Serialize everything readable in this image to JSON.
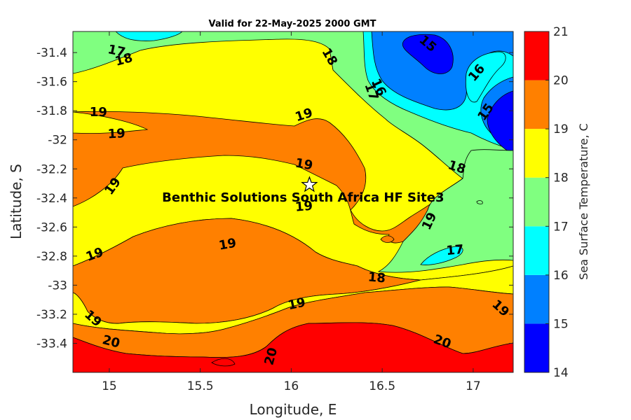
{
  "chart_data": {
    "type": "contour",
    "title": "Valid for 22-May-2025 2000 GMT",
    "xlabel": "Longitude, E",
    "ylabel": "Latitude, S",
    "xlim": [
      14.8,
      17.22
    ],
    "ylim": [
      -33.6,
      -31.255
    ],
    "xticks": [
      15,
      15.5,
      16,
      16.5,
      17
    ],
    "xtick_labels": [
      "15",
      "15.5",
      "16",
      "16.5",
      "17"
    ],
    "yticks": [
      -31.4,
      -31.6,
      -31.8,
      -32,
      -32.2,
      -32.4,
      -32.6,
      -32.8,
      -33,
      -33.2,
      -33.4
    ],
    "ytick_labels": [
      "-31.4",
      "-31.6",
      "-31.8",
      "-32",
      "-32.2",
      "-32.4",
      "-32.6",
      "-32.8",
      "-33",
      "-33.2",
      "-33.4"
    ],
    "colorbar": {
      "label": "Sea Surface Temperature, C",
      "levels": [
        14,
        15,
        16,
        17,
        18,
        19,
        20,
        21
      ],
      "tick_labels": [
        "14",
        "15",
        "16",
        "17",
        "18",
        "19",
        "20",
        "21"
      ],
      "colors": [
        "#0000ff",
        "#0080ff",
        "#00ffff",
        "#80ff80",
        "#ffff00",
        "#ff8000",
        "#ff0000"
      ]
    },
    "site": {
      "name": "Benthic Solutions South Africa HF Site3",
      "lon": 16.1,
      "lat": -32.31
    },
    "contour_labels": [
      {
        "text": "17",
        "lon": 15.04,
        "lat": -31.39,
        "rot": 12
      },
      {
        "text": "18",
        "lon": 15.08,
        "lat": -31.45,
        "rot": -15
      },
      {
        "text": "18",
        "lon": 16.21,
        "lat": -31.43,
        "rot": 60
      },
      {
        "text": "15",
        "lon": 16.75,
        "lat": -31.34,
        "rot": 40
      },
      {
        "text": "16",
        "lon": 17.02,
        "lat": -31.54,
        "rot": -50
      },
      {
        "text": "15",
        "lon": 17.07,
        "lat": -31.81,
        "rot": -55
      },
      {
        "text": "16",
        "lon": 16.48,
        "lat": -31.64,
        "rot": 65
      },
      {
        "text": "17",
        "lon": 16.44,
        "lat": -31.67,
        "rot": 70
      },
      {
        "text": "19",
        "lon": 14.94,
        "lat": -31.81,
        "rot": 0
      },
      {
        "text": "19",
        "lon": 15.04,
        "lat": -31.96,
        "rot": -3
      },
      {
        "text": "19",
        "lon": 16.07,
        "lat": -31.83,
        "rot": -18
      },
      {
        "text": "19",
        "lon": 16.07,
        "lat": -32.17,
        "rot": 10
      },
      {
        "text": "18",
        "lon": 16.91,
        "lat": -32.19,
        "rot": 18
      },
      {
        "text": "19",
        "lon": 15.02,
        "lat": -32.32,
        "rot": -55
      },
      {
        "text": "19",
        "lon": 16.07,
        "lat": -32.46,
        "rot": -5
      },
      {
        "text": "19",
        "lon": 16.76,
        "lat": -32.56,
        "rot": -65
      },
      {
        "text": "19",
        "lon": 15.65,
        "lat": -32.72,
        "rot": -10
      },
      {
        "text": "17",
        "lon": 16.9,
        "lat": -32.76,
        "rot": -5
      },
      {
        "text": "19",
        "lon": 14.92,
        "lat": -32.79,
        "rot": -20
      },
      {
        "text": "18",
        "lon": 16.47,
        "lat": -32.95,
        "rot": 5
      },
      {
        "text": "19",
        "lon": 16.03,
        "lat": -33.13,
        "rot": -12
      },
      {
        "text": "19",
        "lon": 14.91,
        "lat": -33.23,
        "rot": 42
      },
      {
        "text": "19",
        "lon": 17.15,
        "lat": -33.16,
        "rot": 42
      },
      {
        "text": "20",
        "lon": 15.01,
        "lat": -33.39,
        "rot": 15
      },
      {
        "text": "20",
        "lon": 16.83,
        "lat": -33.39,
        "rot": 20
      },
      {
        "text": "20",
        "lon": 15.89,
        "lat": -33.49,
        "rot": -75
      }
    ]
  }
}
